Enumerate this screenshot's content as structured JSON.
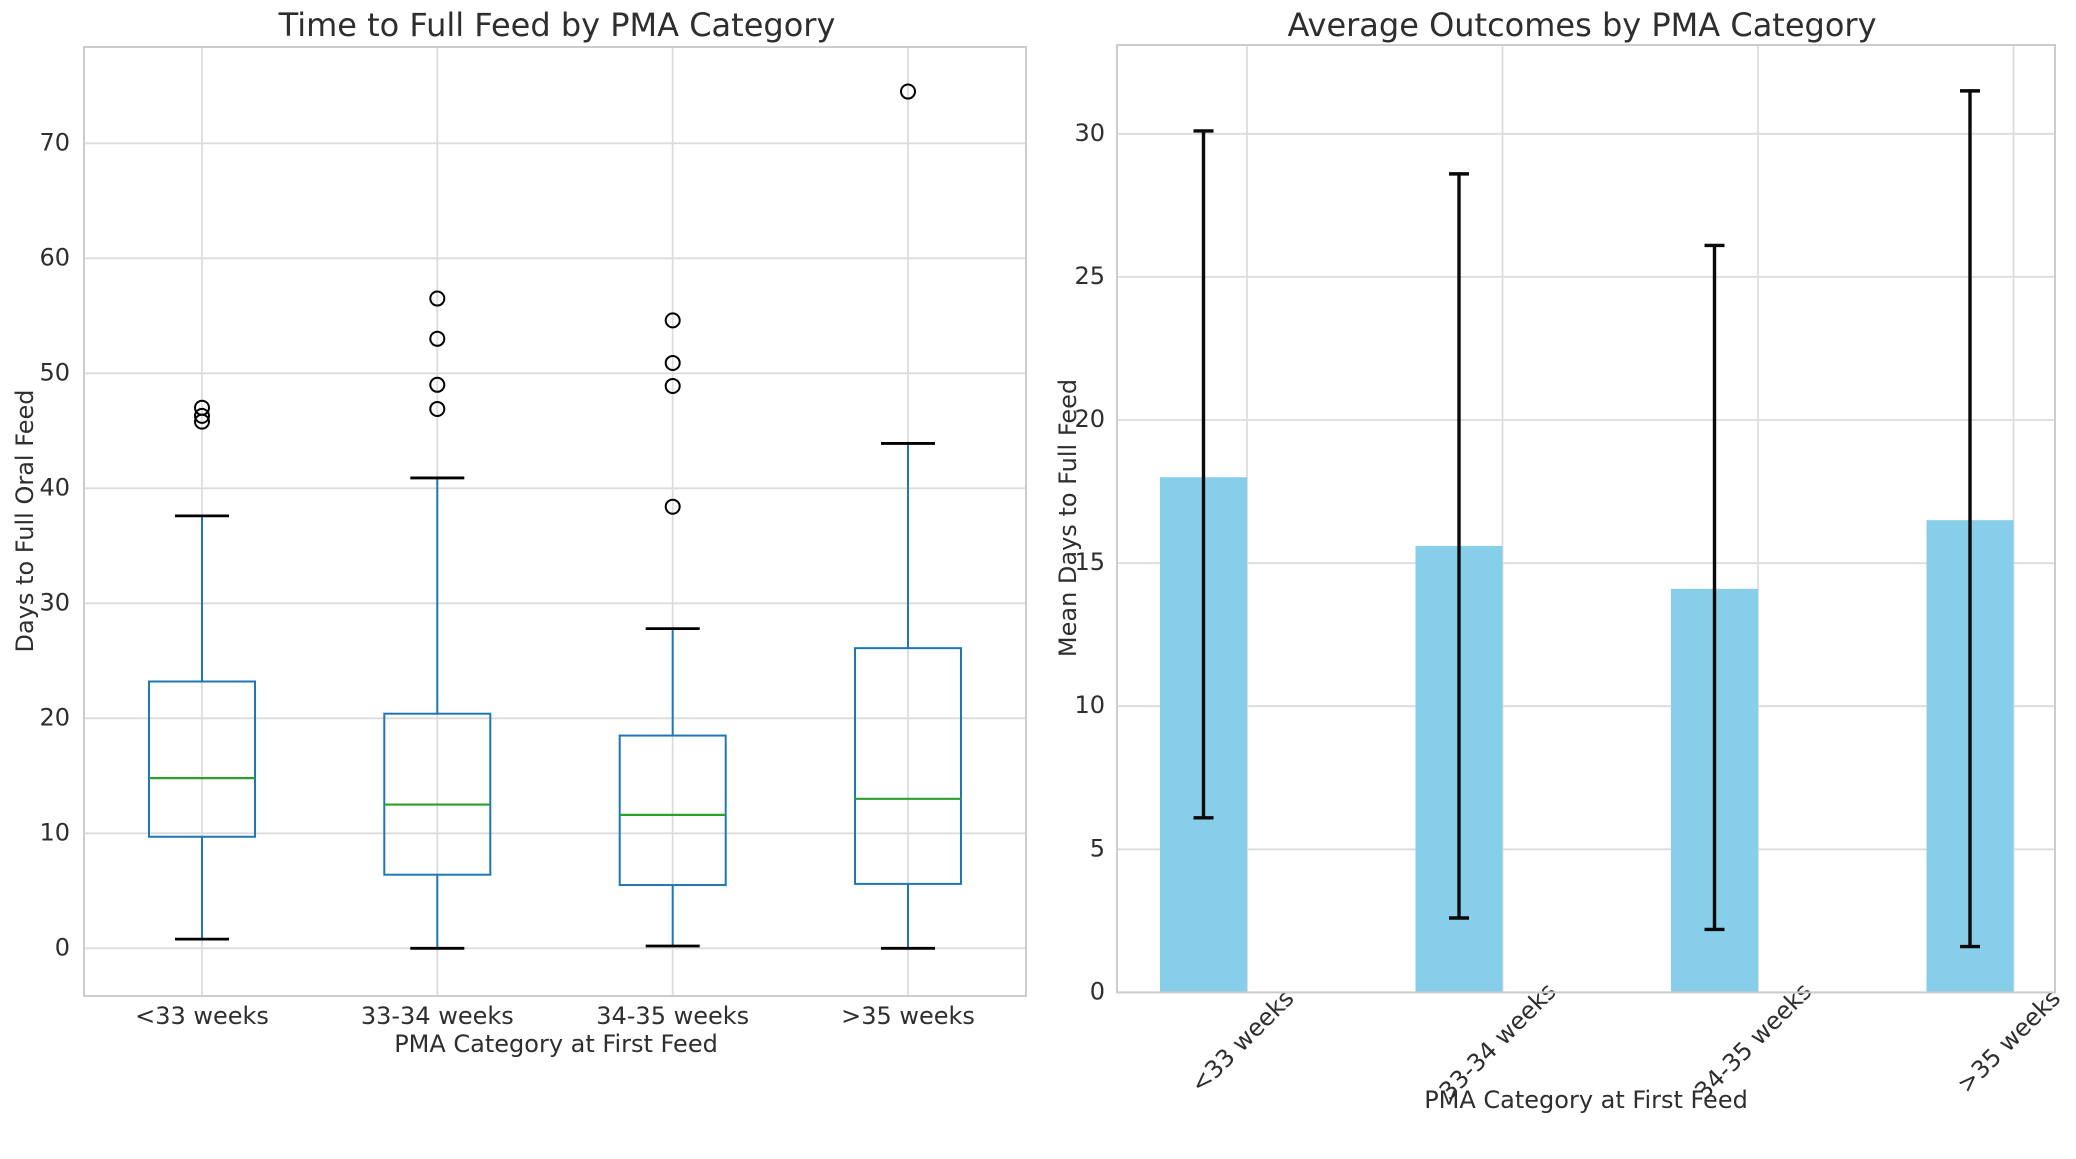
{
  "figure": {
    "background": "#ffffff",
    "grid_color": "#dcdcdc",
    "spine_color": "#cccccc",
    "text_color": "#2e2e2e"
  },
  "chart_data": [
    {
      "type": "boxplot",
      "title": "Time to Full Feed by PMA Category",
      "xlabel": "PMA Category at First Feed",
      "ylabel": "Days to Full Oral Feed",
      "categories": [
        "<33 weeks",
        "33-34 weeks",
        "34-35 weeks",
        ">35 weeks"
      ],
      "yticks": [
        0,
        10,
        20,
        30,
        40,
        50,
        60,
        70
      ],
      "ylim": [
        -4.2,
        78.3
      ],
      "grid": true,
      "boxes": [
        {
          "whislo": 0.8,
          "q1": 9.7,
          "med": 14.8,
          "q3": 23.2,
          "whishi": 37.6,
          "fliers": [
            45.8,
            46.3,
            47.0
          ]
        },
        {
          "whislo": 0.0,
          "q1": 6.4,
          "med": 12.5,
          "q3": 20.4,
          "whishi": 40.9,
          "fliers": [
            46.9,
            49.0,
            53.0,
            56.5
          ]
        },
        {
          "whislo": 0.2,
          "q1": 5.5,
          "med": 11.6,
          "q3": 18.5,
          "whishi": 27.8,
          "fliers": [
            38.4,
            48.9,
            50.9,
            54.6
          ]
        },
        {
          "whislo": 0.0,
          "q1": 5.6,
          "med": 13.0,
          "q3": 26.1,
          "whishi": 43.9,
          "fliers": [
            74.5
          ]
        }
      ],
      "colors": {
        "box": "#1f77b4",
        "median": "#2ca02c",
        "caps": "#000000",
        "fliers": "#000000"
      }
    },
    {
      "type": "bar",
      "title": "Average Outcomes by PMA Category",
      "xlabel": "PMA Category at First Feed",
      "ylabel": "Mean Days to Full Feed",
      "categories": [
        "<33 weeks",
        "33-34 weeks",
        "34-35 weeks",
        ">35 weeks"
      ],
      "yticks": [
        0,
        5,
        10,
        15,
        20,
        25,
        30
      ],
      "ylim": [
        0,
        33.1
      ],
      "grid": true,
      "values": [
        18.0,
        15.6,
        14.1,
        16.5
      ],
      "error_low": [
        6.1,
        2.6,
        2.2,
        1.6
      ],
      "error_high": [
        30.1,
        28.6,
        26.1,
        31.5
      ],
      "xtick_rotation": 45,
      "bar_color": "#87CEEB",
      "error_color": "#0a0a0a"
    }
  ]
}
